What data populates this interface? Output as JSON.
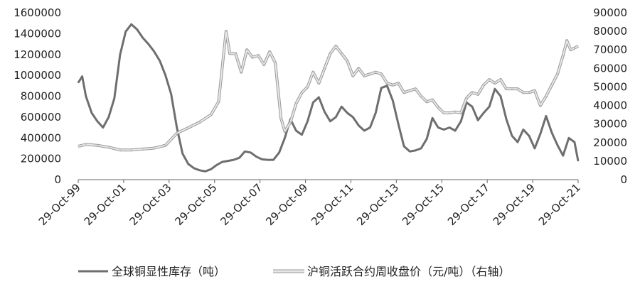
{
  "chart_data": {
    "type": "line",
    "title": "",
    "xlabel": "",
    "ylabel": "",
    "x_range": [
      "1999-10-29",
      "2021-10-29"
    ],
    "x_ticks": [
      "29-Oct-99",
      "29-Oct-01",
      "29-Oct-03",
      "29-Oct-05",
      "29-Oct-07",
      "29-Oct-09",
      "29-Oct-11",
      "29-Oct-13",
      "29-Oct-15",
      "29-Oct-17",
      "29-Oct-19",
      "29-Oct-21"
    ],
    "y_left": {
      "range": [
        0,
        1600000
      ],
      "ticks": [
        "0",
        "200000",
        "400000",
        "600000",
        "800000",
        "1000000",
        "1200000",
        "1400000",
        "1600000"
      ]
    },
    "y_right": {
      "range": [
        0,
        90000
      ],
      "ticks": [
        "0",
        "10000",
        "20000",
        "30000",
        "40000",
        "50000",
        "60000",
        "70000",
        "80000",
        "90000"
      ]
    },
    "grid": false,
    "legend_position": "bottom",
    "series": [
      {
        "name": "全球铜显性库存（吨）",
        "axis": "left",
        "color": "#6e6e6e",
        "points": [
          [
            "1999-10-29",
            930000
          ],
          [
            "2000-01-01",
            990000
          ],
          [
            "2000-03-01",
            800000
          ],
          [
            "2000-06-01",
            640000
          ],
          [
            "2000-09-01",
            560000
          ],
          [
            "2000-12-01",
            500000
          ],
          [
            "2001-03-01",
            600000
          ],
          [
            "2001-06-01",
            780000
          ],
          [
            "2001-09-01",
            1200000
          ],
          [
            "2001-12-01",
            1420000
          ],
          [
            "2002-03-01",
            1490000
          ],
          [
            "2002-06-01",
            1440000
          ],
          [
            "2002-09-01",
            1360000
          ],
          [
            "2002-12-01",
            1300000
          ],
          [
            "2003-03-01",
            1230000
          ],
          [
            "2003-06-01",
            1140000
          ],
          [
            "2003-09-01",
            1000000
          ],
          [
            "2003-12-01",
            820000
          ],
          [
            "2004-03-01",
            500000
          ],
          [
            "2004-06-01",
            250000
          ],
          [
            "2004-09-01",
            150000
          ],
          [
            "2004-12-01",
            110000
          ],
          [
            "2005-03-01",
            90000
          ],
          [
            "2005-06-01",
            80000
          ],
          [
            "2005-09-01",
            100000
          ],
          [
            "2005-12-01",
            140000
          ],
          [
            "2006-03-01",
            170000
          ],
          [
            "2006-06-01",
            180000
          ],
          [
            "2006-09-01",
            190000
          ],
          [
            "2006-12-01",
            210000
          ],
          [
            "2007-03-01",
            270000
          ],
          [
            "2007-06-01",
            260000
          ],
          [
            "2007-09-01",
            220000
          ],
          [
            "2007-12-01",
            195000
          ],
          [
            "2008-03-01",
            190000
          ],
          [
            "2008-06-01",
            190000
          ],
          [
            "2008-09-01",
            260000
          ],
          [
            "2008-12-01",
            400000
          ],
          [
            "2009-03-01",
            580000
          ],
          [
            "2009-06-01",
            470000
          ],
          [
            "2009-09-01",
            430000
          ],
          [
            "2009-12-01",
            560000
          ],
          [
            "2010-03-01",
            740000
          ],
          [
            "2010-06-01",
            790000
          ],
          [
            "2010-09-01",
            650000
          ],
          [
            "2010-12-01",
            560000
          ],
          [
            "2011-03-01",
            600000
          ],
          [
            "2011-06-01",
            700000
          ],
          [
            "2011-09-01",
            640000
          ],
          [
            "2011-12-01",
            600000
          ],
          [
            "2012-03-01",
            520000
          ],
          [
            "2012-06-01",
            470000
          ],
          [
            "2012-09-01",
            500000
          ],
          [
            "2012-12-01",
            640000
          ],
          [
            "2013-03-01",
            880000
          ],
          [
            "2013-06-01",
            900000
          ],
          [
            "2013-09-01",
            760000
          ],
          [
            "2013-12-01",
            530000
          ],
          [
            "2014-03-01",
            320000
          ],
          [
            "2014-06-01",
            270000
          ],
          [
            "2014-09-01",
            280000
          ],
          [
            "2014-12-01",
            300000
          ],
          [
            "2015-03-01",
            390000
          ],
          [
            "2015-06-01",
            590000
          ],
          [
            "2015-09-01",
            500000
          ],
          [
            "2015-12-01",
            480000
          ],
          [
            "2016-03-01",
            500000
          ],
          [
            "2016-06-01",
            470000
          ],
          [
            "2016-09-01",
            560000
          ],
          [
            "2016-12-01",
            740000
          ],
          [
            "2017-03-01",
            700000
          ],
          [
            "2017-06-01",
            570000
          ],
          [
            "2017-09-01",
            640000
          ],
          [
            "2017-12-01",
            700000
          ],
          [
            "2018-03-01",
            870000
          ],
          [
            "2018-06-01",
            800000
          ],
          [
            "2018-09-01",
            580000
          ],
          [
            "2018-12-01",
            420000
          ],
          [
            "2019-03-01",
            360000
          ],
          [
            "2019-06-01",
            480000
          ],
          [
            "2019-09-01",
            420000
          ],
          [
            "2019-12-01",
            300000
          ],
          [
            "2020-03-01",
            440000
          ],
          [
            "2020-06-01",
            610000
          ],
          [
            "2020-09-01",
            450000
          ],
          [
            "2020-12-01",
            330000
          ],
          [
            "2021-03-01",
            230000
          ],
          [
            "2021-06-01",
            400000
          ],
          [
            "2021-09-01",
            360000
          ],
          [
            "2021-10-29",
            180000
          ]
        ]
      },
      {
        "name": "沪铜活跃合约周收盘价（元/吨）（右轴）",
        "axis": "right",
        "color": "#d2d2d2",
        "points": [
          [
            "1999-10-29",
            18000
          ],
          [
            "2000-03-01",
            19000
          ],
          [
            "2000-09-01",
            18500
          ],
          [
            "2001-03-01",
            17500
          ],
          [
            "2001-09-01",
            16000
          ],
          [
            "2002-03-01",
            16000
          ],
          [
            "2002-09-01",
            16500
          ],
          [
            "2003-03-01",
            17000
          ],
          [
            "2003-09-01",
            18500
          ],
          [
            "2004-03-01",
            25000
          ],
          [
            "2004-09-01",
            28000
          ],
          [
            "2005-03-01",
            31000
          ],
          [
            "2005-09-01",
            35000
          ],
          [
            "2006-01-01",
            42000
          ],
          [
            "2006-05-01",
            80000
          ],
          [
            "2006-07-01",
            68000
          ],
          [
            "2006-10-01",
            68000
          ],
          [
            "2007-01-01",
            58000
          ],
          [
            "2007-04-01",
            70000
          ],
          [
            "2007-07-01",
            66000
          ],
          [
            "2007-10-01",
            67000
          ],
          [
            "2008-01-01",
            62000
          ],
          [
            "2008-04-01",
            69000
          ],
          [
            "2008-07-01",
            63000
          ],
          [
            "2008-10-01",
            33000
          ],
          [
            "2008-12-01",
            26000
          ],
          [
            "2009-03-01",
            31000
          ],
          [
            "2009-06-01",
            41000
          ],
          [
            "2009-09-01",
            47000
          ],
          [
            "2009-12-01",
            50000
          ],
          [
            "2010-03-01",
            58000
          ],
          [
            "2010-06-01",
            52000
          ],
          [
            "2010-09-01",
            60000
          ],
          [
            "2010-12-01",
            68000
          ],
          [
            "2011-03-01",
            72000
          ],
          [
            "2011-06-01",
            68000
          ],
          [
            "2011-09-01",
            64000
          ],
          [
            "2011-12-01",
            56000
          ],
          [
            "2012-03-01",
            60000
          ],
          [
            "2012-06-01",
            56000
          ],
          [
            "2012-09-01",
            57000
          ],
          [
            "2012-12-01",
            58000
          ],
          [
            "2013-03-01",
            57000
          ],
          [
            "2013-06-01",
            52000
          ],
          [
            "2013-09-01",
            51000
          ],
          [
            "2013-12-01",
            52000
          ],
          [
            "2014-03-01",
            47000
          ],
          [
            "2014-06-01",
            48000
          ],
          [
            "2014-09-01",
            49000
          ],
          [
            "2014-12-01",
            45000
          ],
          [
            "2015-03-01",
            42000
          ],
          [
            "2015-06-01",
            43000
          ],
          [
            "2015-09-01",
            39000
          ],
          [
            "2015-12-01",
            36000
          ],
          [
            "2016-03-01",
            36000
          ],
          [
            "2016-06-01",
            36500
          ],
          [
            "2016-09-01",
            36000
          ],
          [
            "2016-12-01",
            44000
          ],
          [
            "2017-03-01",
            47000
          ],
          [
            "2017-06-01",
            46000
          ],
          [
            "2017-09-01",
            51000
          ],
          [
            "2017-12-01",
            54000
          ],
          [
            "2018-03-01",
            52000
          ],
          [
            "2018-06-01",
            54000
          ],
          [
            "2018-09-01",
            49000
          ],
          [
            "2018-12-01",
            49000
          ],
          [
            "2019-03-01",
            49000
          ],
          [
            "2019-06-01",
            47000
          ],
          [
            "2019-09-01",
            47000
          ],
          [
            "2019-12-01",
            48000
          ],
          [
            "2020-03-01",
            40000
          ],
          [
            "2020-06-01",
            45000
          ],
          [
            "2020-09-01",
            51000
          ],
          [
            "2020-12-01",
            57000
          ],
          [
            "2021-03-01",
            67000
          ],
          [
            "2021-05-01",
            75000
          ],
          [
            "2021-07-01",
            70000
          ],
          [
            "2021-09-01",
            71000
          ],
          [
            "2021-10-29",
            72000
          ]
        ]
      }
    ]
  }
}
